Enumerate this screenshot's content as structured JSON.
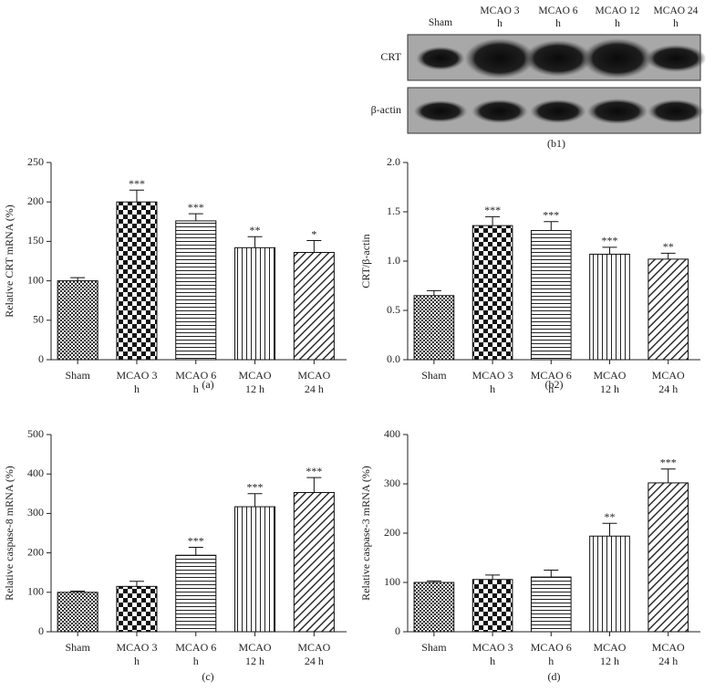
{
  "blot": {
    "lanes": [
      "Sham",
      "MCAO 3 h",
      "MCAO 6 h",
      "MCAO 12 h",
      "MCAO 24 h"
    ],
    "rows": [
      "CRT",
      "β-actin"
    ],
    "caption": "(b1)"
  },
  "chart_data": [
    {
      "type": "bar",
      "caption": "(a)",
      "ylabel": "Relative CRT mRNA (%)",
      "categories": [
        "Sham",
        "MCAO 3 h",
        "MCAO 6 h",
        "MCAO 12 h",
        "MCAO 24 h"
      ],
      "values": [
        100,
        200,
        176,
        142,
        136
      ],
      "errors": [
        4,
        15,
        9,
        14,
        15
      ],
      "annotations": [
        null,
        "***",
        "***",
        "**",
        "*"
      ],
      "ylim": [
        0,
        250
      ],
      "yticks": [
        0,
        50,
        100,
        150,
        200,
        250
      ]
    },
    {
      "type": "bar",
      "caption": "(b2)",
      "ylabel": "CRT/β-actin",
      "categories": [
        "Sham",
        "MCAO 3 h",
        "MCAO 6 h",
        "MCAO 12 h",
        "MCAO 24 h"
      ],
      "values": [
        0.65,
        1.36,
        1.31,
        1.07,
        1.02
      ],
      "errors": [
        0.05,
        0.09,
        0.09,
        0.07,
        0.06
      ],
      "annotations": [
        null,
        "***",
        "***",
        "***",
        "**"
      ],
      "ylim": [
        0,
        2
      ],
      "yticks": [
        {
          "value": 0,
          "label": "0.0"
        },
        0.5,
        {
          "value": 1,
          "label": "1.0"
        },
        1.5,
        {
          "value": 2,
          "label": "2.0"
        }
      ]
    },
    {
      "type": "bar",
      "caption": "(c)",
      "ylabel": "Relative caspase-8 mRNA (%)",
      "categories": [
        "Sham",
        "MCAO 3 h",
        "MCAO 6 h",
        "MCAO 12 h",
        "MCAO 24 h"
      ],
      "values": [
        100,
        115,
        194,
        317,
        353
      ],
      "errors": [
        3,
        13,
        20,
        33,
        38
      ],
      "annotations": [
        null,
        null,
        "***",
        "***",
        "***"
      ],
      "ylim": [
        0,
        500
      ],
      "yticks": [
        0,
        100,
        200,
        300,
        400,
        500
      ]
    },
    {
      "type": "bar",
      "caption": "(d)",
      "ylabel": "Relative caspase-3 mRNA (%)",
      "categories": [
        "Sham",
        "MCAO 3 h",
        "MCAO 6 h",
        "MCAO 12 h",
        "MCAO 24 h"
      ],
      "values": [
        100,
        106,
        111,
        194,
        302
      ],
      "errors": [
        3,
        9,
        14,
        26,
        28
      ],
      "annotations": [
        null,
        null,
        null,
        "**",
        "***"
      ],
      "ylim": [
        0,
        400
      ],
      "yticks": [
        0,
        100,
        200,
        300,
        400
      ]
    }
  ]
}
